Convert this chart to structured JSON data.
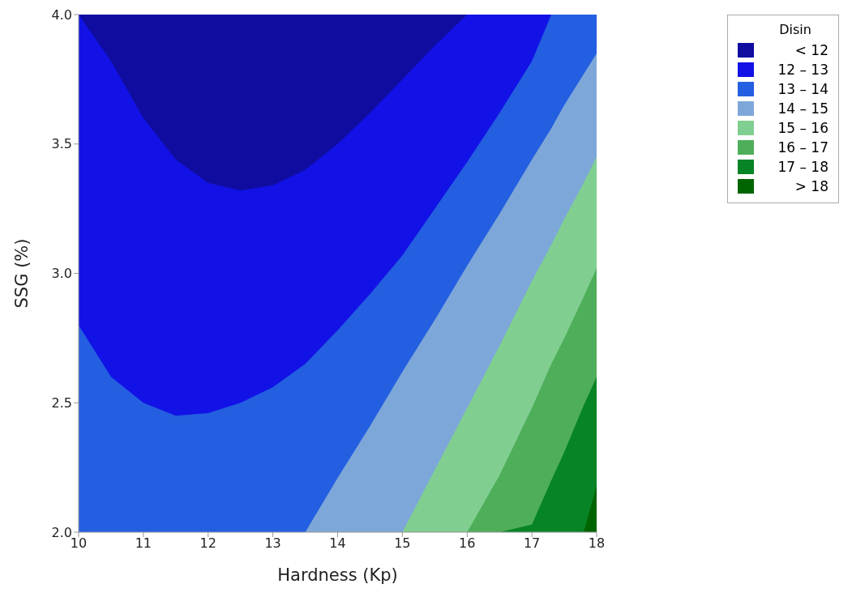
{
  "chart_data": {
    "type": "area",
    "xlabel": "Hardness (Kp)",
    "ylabel": "SSG (%)",
    "legend_title": "Disin",
    "legend": "top right",
    "xlim": [
      10,
      18
    ],
    "xticks": [
      10,
      11,
      12,
      13,
      14,
      15,
      16,
      17,
      18
    ],
    "ylim": [
      2,
      4
    ],
    "yticks": [
      {
        "value": 2,
        "label": "2.0"
      },
      {
        "value": 2.5,
        "label": "2.5"
      },
      {
        "value": 3,
        "label": "3.0"
      },
      {
        "value": 3.5,
        "label": "3.5"
      },
      {
        "value": 4,
        "label": "4.0"
      }
    ],
    "x": [
      10,
      10.5,
      11,
      11.5,
      12,
      12.5,
      13,
      13.5,
      14,
      14.5,
      15,
      15.5,
      16,
      16.5,
      17,
      17.3,
      17.5,
      17.8,
      18
    ],
    "series": [
      {
        "name": "< 12",
        "color": "#100ca0",
        "values": [
          4,
          4,
          4,
          4,
          4,
          4,
          4,
          4,
          4,
          4,
          4,
          4,
          4,
          null,
          null,
          null,
          null,
          null,
          null
        ]
      },
      {
        "name": "12 – 13",
        "color": "#1212e6",
        "values": [
          4,
          3.82,
          3.6,
          3.44,
          3.35,
          3.32,
          3.34,
          3.4,
          3.5,
          3.62,
          3.75,
          3.88,
          4,
          4,
          4,
          4,
          null,
          null,
          null
        ]
      },
      {
        "name": "13 – 14",
        "color": "#235fe0",
        "values": [
          2.8,
          2.6,
          2.5,
          2.45,
          2.46,
          2.5,
          2.56,
          2.65,
          2.78,
          2.92,
          3.07,
          3.25,
          3.43,
          3.62,
          3.82,
          4,
          4,
          4,
          4
        ]
      },
      {
        "name": "14 – 15",
        "color": "#7ea7d9",
        "values": [
          null,
          null,
          null,
          null,
          null,
          null,
          null,
          2,
          2.21,
          2.41,
          2.62,
          2.82,
          3.03,
          3.23,
          3.44,
          3.56,
          3.65,
          3.77,
          3.85
        ]
      },
      {
        "name": "15 – 16",
        "color": "#80cf90",
        "values": [
          null,
          null,
          null,
          null,
          null,
          null,
          null,
          null,
          null,
          null,
          2,
          2.24,
          2.48,
          2.72,
          2.97,
          3.11,
          3.21,
          3.35,
          3.45
        ]
      },
      {
        "name": "16 – 17",
        "color": "#4fae5a",
        "values": [
          null,
          null,
          null,
          null,
          null,
          null,
          null,
          null,
          null,
          null,
          null,
          null,
          2,
          2.22,
          2.48,
          2.65,
          2.75,
          2.91,
          3.02
        ]
      },
      {
        "name": "17 – 18",
        "color": "#078426",
        "values": [
          null,
          null,
          null,
          null,
          null,
          null,
          null,
          null,
          null,
          null,
          null,
          null,
          null,
          2,
          2.03,
          2.2,
          2.31,
          2.49,
          2.6
        ]
      },
      {
        "name": "> 18",
        "color": "#006400",
        "values": [
          null,
          null,
          null,
          null,
          null,
          null,
          null,
          null,
          null,
          null,
          null,
          null,
          null,
          null,
          null,
          null,
          null,
          2,
          2.18
        ]
      }
    ]
  }
}
